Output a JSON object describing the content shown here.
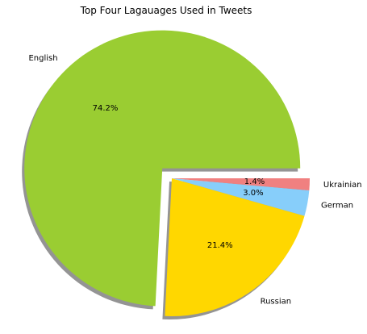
{
  "chart_data": {
    "type": "pie",
    "title": "Top Four Lagauages Used in Tweets",
    "categories": [
      "English",
      "Russian",
      "German",
      "Ukrainian"
    ],
    "values": [
      74.2,
      21.4,
      3.0,
      1.4
    ],
    "pct_labels": [
      "74.2%",
      "21.4%",
      "3.0%",
      "1.4%"
    ],
    "colors": [
      "#9ACD32",
      "#FFD700",
      "#87CEFA",
      "#F08080"
    ],
    "exploded": [
      true,
      false,
      false,
      false
    ],
    "shadow": true,
    "legend": "none"
  }
}
